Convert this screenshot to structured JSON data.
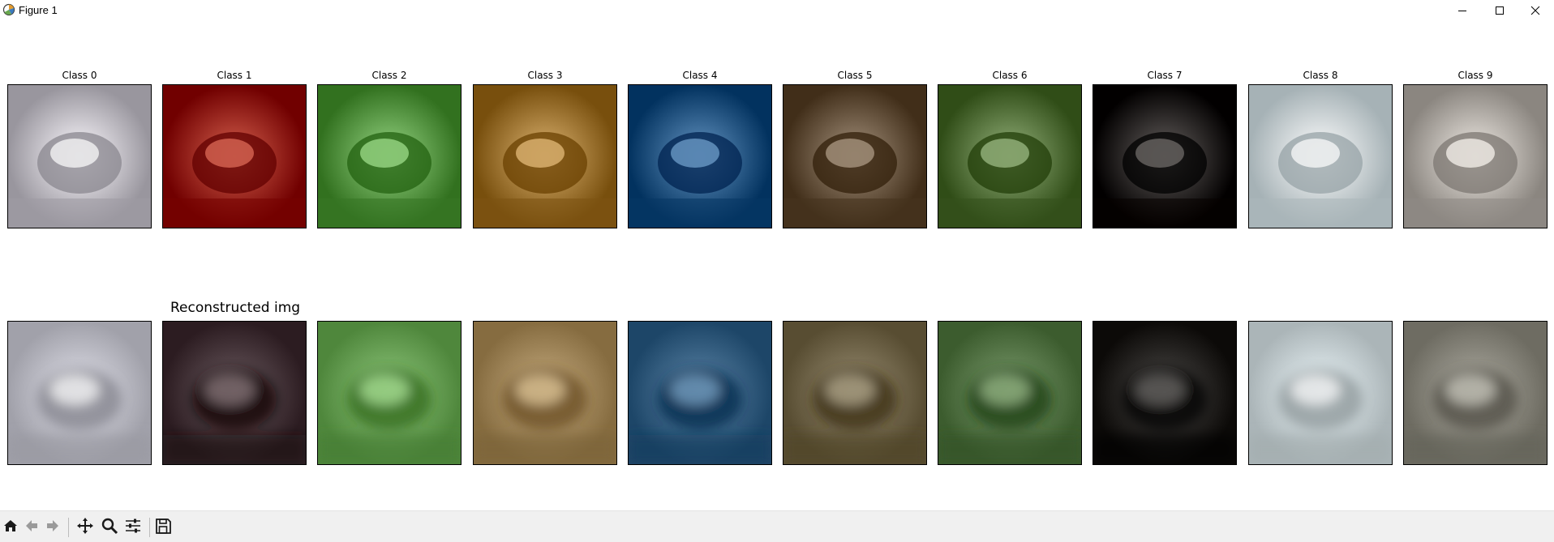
{
  "window": {
    "title": "Figure 1",
    "icons": {
      "app": "matplotlib-figure-icon",
      "minimize": "minimize-icon",
      "maximize": "maximize-icon",
      "close": "close-icon"
    }
  },
  "figure": {
    "top_row_titles": [
      "Class 0",
      "Class 1",
      "Class 2",
      "Class 3",
      "Class 4",
      "Class 5",
      "Class 6",
      "Class 7",
      "Class 8",
      "Class 9"
    ],
    "bottom_row_label": "Reconstructed img",
    "thumbnail_colors": {
      "originals": [
        "#c6c3cb",
        "#9e2a17",
        "#5f9e4c",
        "#a57c3a",
        "#2f5f8c",
        "#6e5b46",
        "#5d7a44",
        "#2f2a28",
        "#d3dfe3",
        "#b8b3ad"
      ],
      "reconstructions": [
        "#bfbfc8",
        "#4a3a3f",
        "#6da55a",
        "#a48a5e",
        "#3b6486",
        "#766b50",
        "#5a7a4c",
        "#2a2826",
        "#c9d3d6",
        "#8c8a80"
      ]
    }
  },
  "toolbar": {
    "icons": [
      "home-icon",
      "back-arrow-icon",
      "forward-arrow-icon",
      "pan-icon",
      "zoom-icon",
      "configure-subplots-icon",
      "save-icon"
    ]
  }
}
